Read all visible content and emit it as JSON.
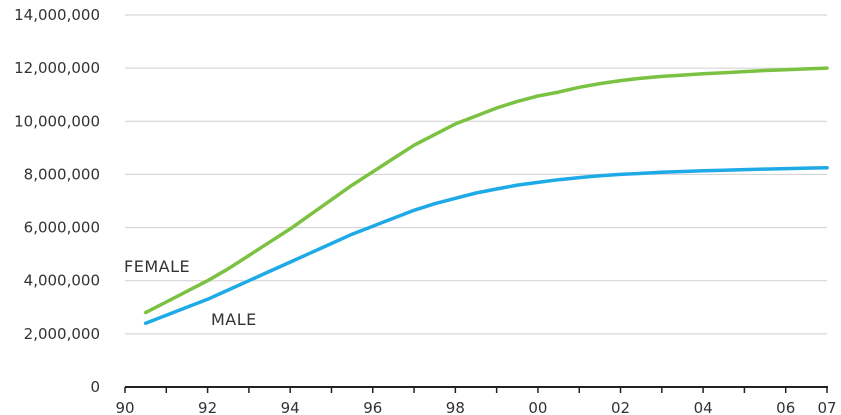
{
  "chart_data": {
    "type": "line",
    "title": "",
    "xlabel": "",
    "ylabel": "",
    "xlim": [
      1990,
      2007
    ],
    "ylim": [
      0,
      14000000
    ],
    "grid": true,
    "legend": "inline",
    "x_ticks": [
      {
        "value": 1990,
        "label": "90"
      },
      {
        "value": 1992,
        "label": "92"
      },
      {
        "value": 1994,
        "label": "94"
      },
      {
        "value": 1996,
        "label": "96"
      },
      {
        "value": 1998,
        "label": "98"
      },
      {
        "value": 2000,
        "label": "00"
      },
      {
        "value": 2002,
        "label": "02"
      },
      {
        "value": 2004,
        "label": "04"
      },
      {
        "value": 2006,
        "label": "06"
      },
      {
        "value": 2007,
        "label": "07"
      }
    ],
    "y_ticks": [
      {
        "value": 0,
        "label": "0"
      },
      {
        "value": 2000000,
        "label": "2,000,000"
      },
      {
        "value": 4000000,
        "label": "4,000,000"
      },
      {
        "value": 6000000,
        "label": "6,000,000"
      },
      {
        "value": 8000000,
        "label": "8,000,000"
      },
      {
        "value": 10000000,
        "label": "10,000,000"
      },
      {
        "value": 12000000,
        "label": "12,000,000"
      },
      {
        "value": 14000000,
        "label": "14,000,000"
      }
    ],
    "series": [
      {
        "name": "FEMALE",
        "color": "#7cc242",
        "x": [
          1990.5,
          1991,
          1991.5,
          1992,
          1992.5,
          1993,
          1993.5,
          1994,
          1994.5,
          1995,
          1995.5,
          1996,
          1996.5,
          1997,
          1997.5,
          1998,
          1998.5,
          1999,
          1999.5,
          2000,
          2000.5,
          2001,
          2001.5,
          2002,
          2002.5,
          2003,
          2003.5,
          2004,
          2004.5,
          2005,
          2005.5,
          2006,
          2006.5,
          2007
        ],
        "values": [
          2800000,
          3200000,
          3600000,
          4000000,
          4450000,
          4950000,
          5450000,
          5950000,
          6500000,
          7050000,
          7600000,
          8100000,
          8600000,
          9100000,
          9500000,
          9900000,
          10200000,
          10500000,
          10750000,
          10950000,
          11100000,
          11280000,
          11420000,
          11530000,
          11620000,
          11690000,
          11740000,
          11790000,
          11830000,
          11870000,
          11910000,
          11940000,
          11970000,
          12000000
        ]
      },
      {
        "name": "MALE",
        "color": "#1eaae6",
        "x": [
          1990.5,
          1991,
          1991.5,
          1992,
          1992.5,
          1993,
          1993.5,
          1994,
          1994.5,
          1995,
          1995.5,
          1996,
          1996.5,
          1997,
          1997.5,
          1998,
          1998.5,
          1999,
          1999.5,
          2000,
          2000.5,
          2001,
          2001.5,
          2002,
          2002.5,
          2003,
          2003.5,
          2004,
          2004.5,
          2005,
          2005.5,
          2006,
          2006.5,
          2007
        ],
        "values": [
          2400000,
          2700000,
          3000000,
          3300000,
          3650000,
          4000000,
          4350000,
          4700000,
          5050000,
          5400000,
          5750000,
          6050000,
          6350000,
          6650000,
          6900000,
          7100000,
          7300000,
          7450000,
          7600000,
          7700000,
          7800000,
          7880000,
          7950000,
          8000000,
          8040000,
          8080000,
          8110000,
          8140000,
          8160000,
          8180000,
          8200000,
          8220000,
          8240000,
          8250000
        ]
      }
    ]
  }
}
